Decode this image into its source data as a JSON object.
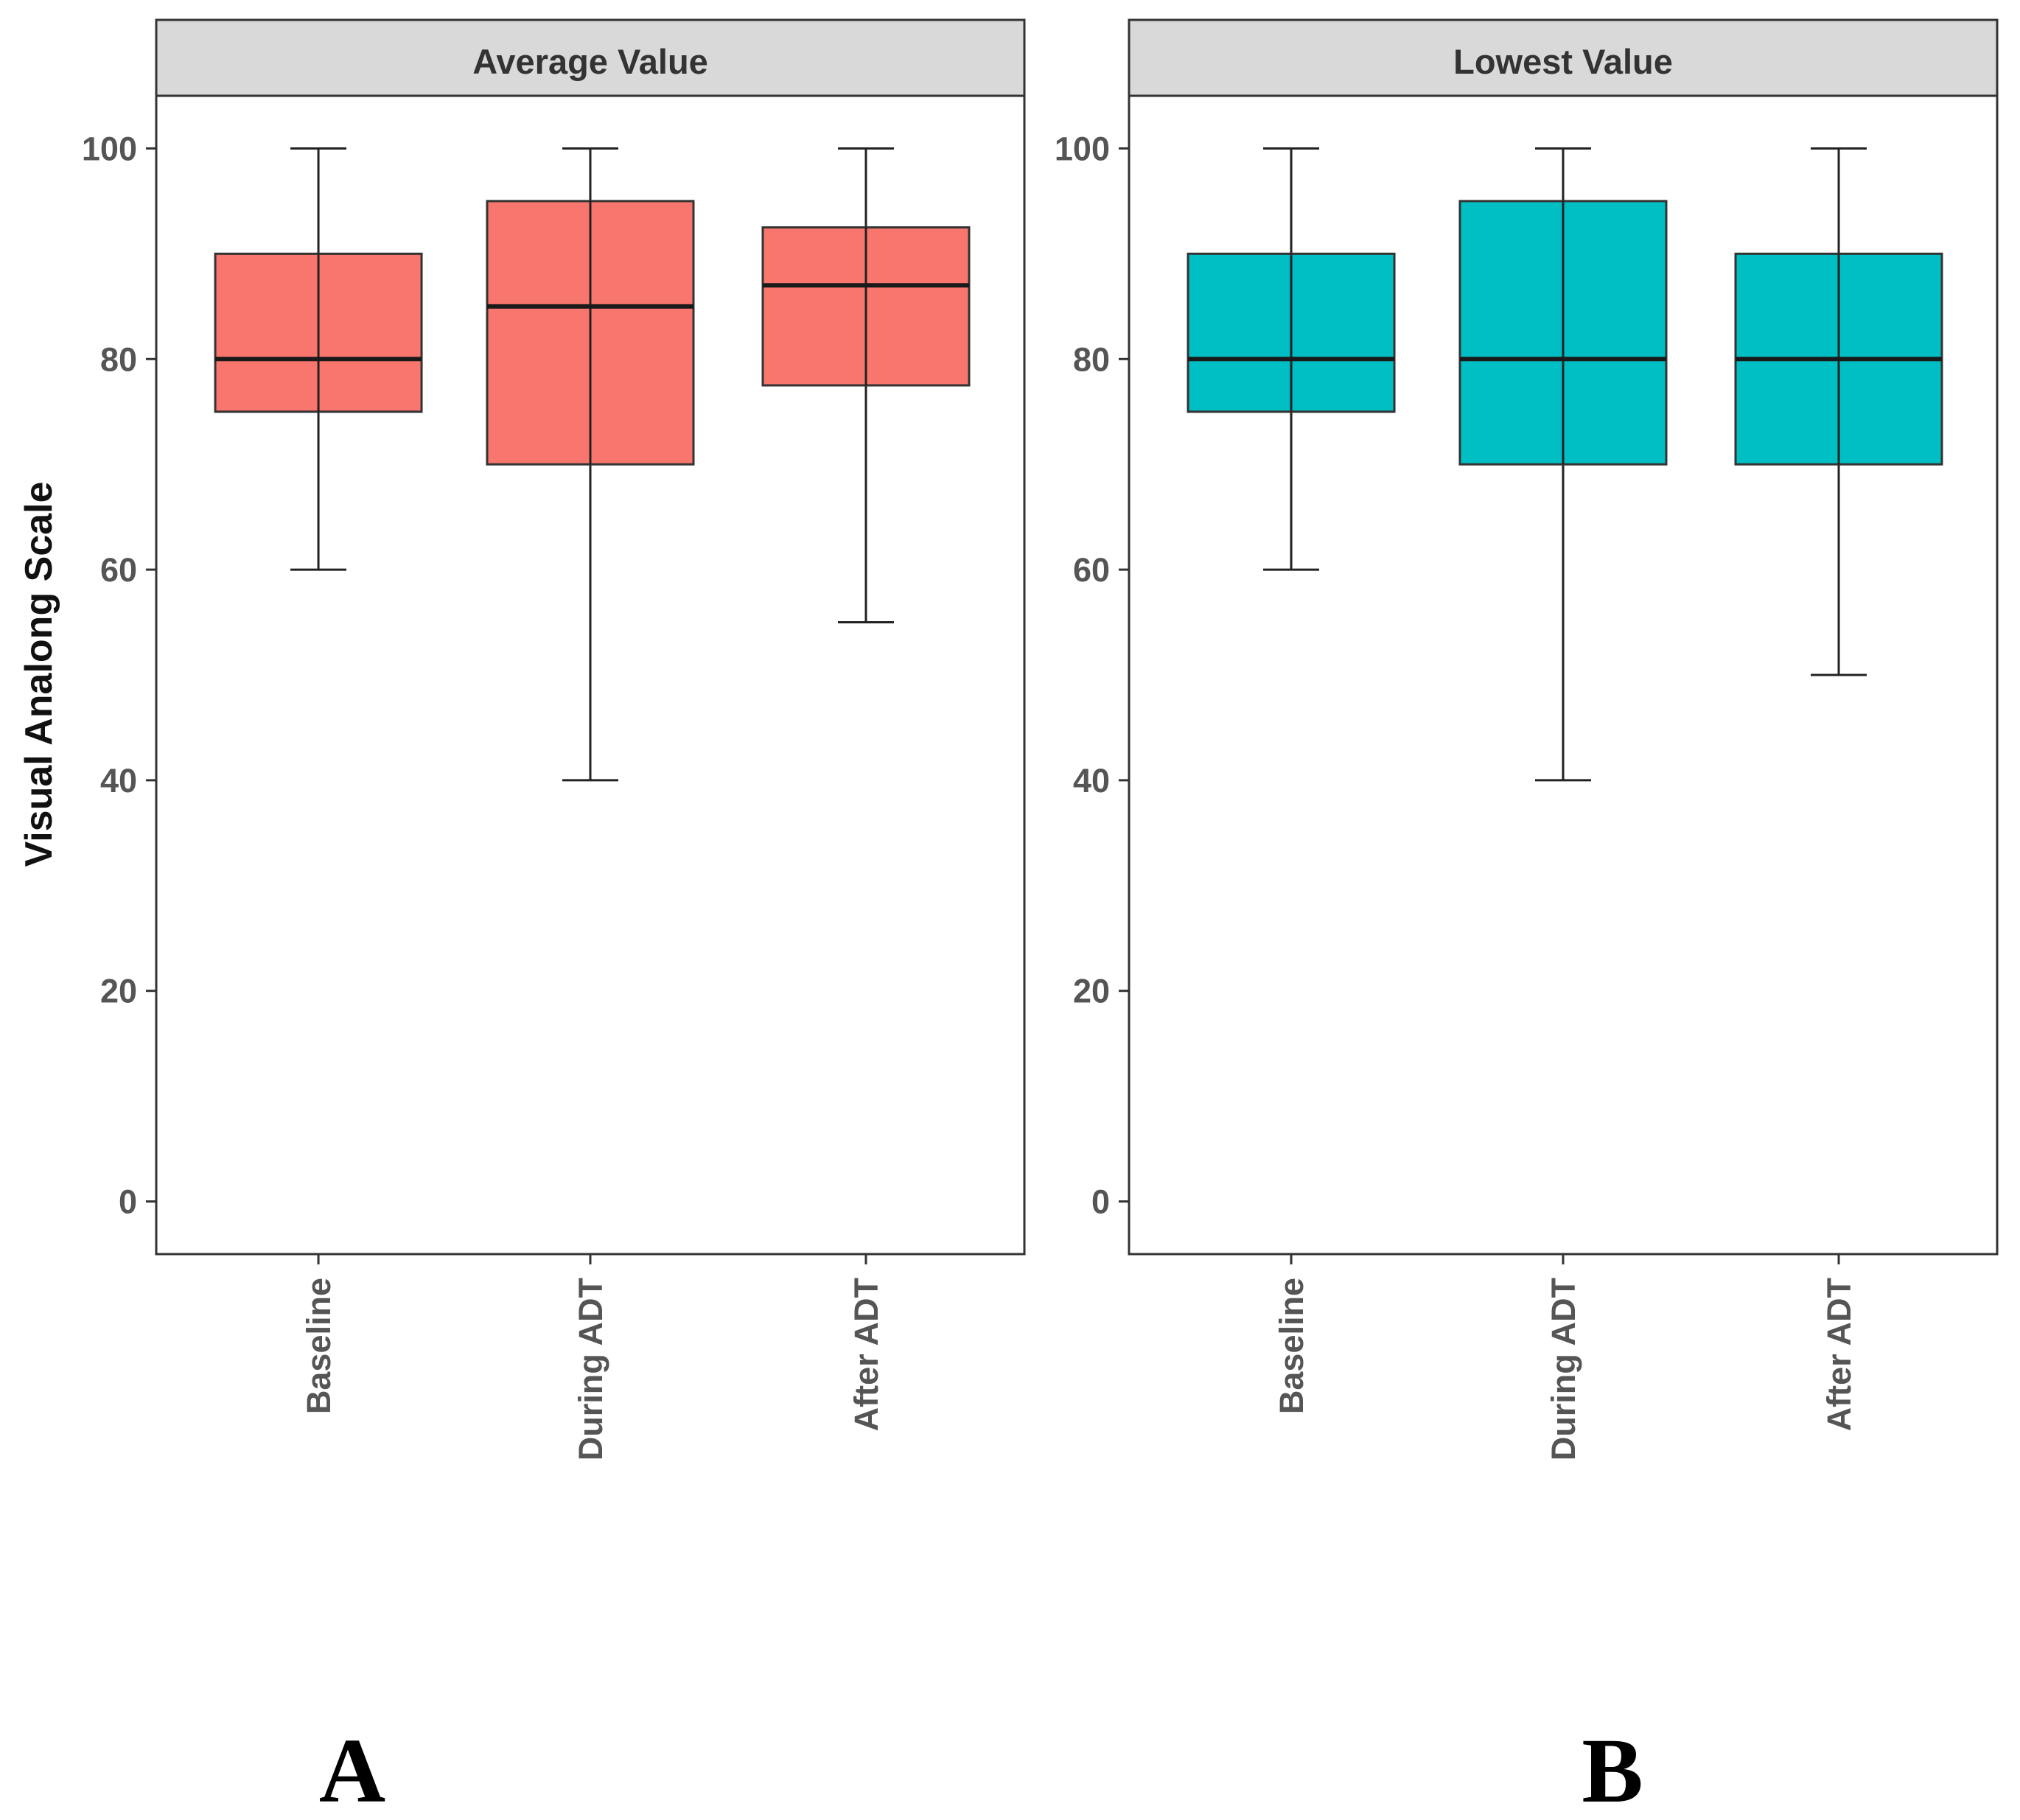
{
  "chart_data": [
    {
      "type": "box",
      "panel_label": "A",
      "title": "Average Value",
      "ylabel": "Visual Analong Scale",
      "xlabel": "",
      "categories": [
        "Baseline",
        "During ADT",
        "After ADT"
      ],
      "yticks": [
        0,
        20,
        40,
        60,
        80,
        100
      ],
      "ylim": [
        -5,
        105
      ],
      "fill_color": "#F8766D",
      "boxes": [
        {
          "category": "Baseline",
          "min": 60,
          "q1": 75,
          "median": 80,
          "q3": 90,
          "max": 100
        },
        {
          "category": "During ADT",
          "min": 40,
          "q1": 70,
          "median": 85,
          "q3": 95,
          "max": 100
        },
        {
          "category": "After ADT",
          "min": 55,
          "q1": 77.5,
          "median": 87,
          "q3": 92.5,
          "max": 100
        }
      ]
    },
    {
      "type": "box",
      "panel_label": "B",
      "title": "Lowest Value",
      "ylabel": "Visual Analong Scale",
      "xlabel": "",
      "categories": [
        "Baseline",
        "During ADT",
        "After ADT"
      ],
      "yticks": [
        0,
        20,
        40,
        60,
        80,
        100
      ],
      "ylim": [
        -5,
        105
      ],
      "fill_color": "#00BFC4",
      "boxes": [
        {
          "category": "Baseline",
          "min": 60,
          "q1": 75,
          "median": 80,
          "q3": 90,
          "max": 100
        },
        {
          "category": "During ADT",
          "min": 40,
          "q1": 70,
          "median": 80,
          "q3": 95,
          "max": 100
        },
        {
          "category": "After ADT",
          "min": 50,
          "q1": 70,
          "median": 80,
          "q3": 90,
          "max": 100
        }
      ]
    }
  ]
}
